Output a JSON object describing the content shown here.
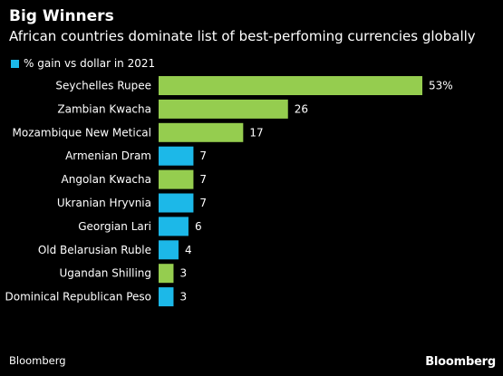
{
  "chart_data": {
    "type": "bar",
    "orientation": "horizontal",
    "title": "Big Winners",
    "subtitle": "African countries dominate list of best-perfoming currencies globally",
    "legend": [
      {
        "label": "% gain vs dollar in 2021",
        "color": "#1cb8e8"
      }
    ],
    "categories": [
      "Seychelles Rupee",
      "Zambian Kwacha",
      "Mozambique New Metical",
      "Armenian Dram",
      "Angolan Kwacha",
      "Ukranian Hryvnia",
      "Georgian Lari",
      "Old Belarusian Ruble",
      "Ugandan Shilling",
      "Dominical Republican Peso"
    ],
    "values": [
      53,
      26,
      17,
      7,
      7,
      7,
      6,
      4,
      3,
      3
    ],
    "value_labels": [
      "53%",
      "26",
      "17",
      "7",
      "7",
      "7",
      "6",
      "4",
      "3",
      "3"
    ],
    "bar_colors": [
      "#95cd4f",
      "#95cd4f",
      "#95cd4f",
      "#1cb8e8",
      "#95cd4f",
      "#1cb8e8",
      "#1cb8e8",
      "#1cb8e8",
      "#95cd4f",
      "#1cb8e8"
    ],
    "xlim": [
      0,
      53
    ],
    "grid": false
  },
  "source": "Bloomberg",
  "brand": "Bloomberg"
}
